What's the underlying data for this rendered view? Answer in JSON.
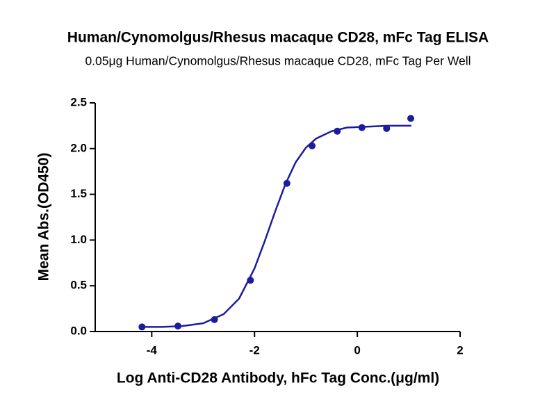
{
  "chart_data": {
    "type": "scatter",
    "title": "Human/Cynomolgus/Rhesus macaque CD28, mFc Tag ELISA",
    "subtitle": "0.05μg Human/Cynomolgus/Rhesus macaque CD28, mFc Tag Per Well",
    "x_label": "Log Anti-CD28 Antibody, hFc Tag Conc.(μg/ml)",
    "y_label": "Mean Abs.(OD450)",
    "xlim": [
      -5.1,
      2
    ],
    "ylim": [
      0,
      2.5
    ],
    "xticks": [
      -4,
      -2,
      0,
      2
    ],
    "yticks": [
      {
        "value": 0,
        "label": "0.0"
      },
      {
        "value": 0.5,
        "label": "0.5"
      },
      {
        "value": 1,
        "label": "1.0"
      },
      {
        "value": 1.5,
        "label": "1.5"
      },
      {
        "value": 2,
        "label": "2.0"
      },
      {
        "value": 2.5,
        "label": "2.5"
      }
    ],
    "series": [
      {
        "mode": "markers",
        "color": "#1c1c9e",
        "x": [
          -4.19,
          -3.49,
          -2.78,
          -2.08,
          -1.37,
          -0.88,
          -0.39,
          0.09,
          0.57,
          1.04
        ],
        "values": [
          0.05,
          0.06,
          0.13,
          0.56,
          1.62,
          2.03,
          2.19,
          2.23,
          2.22,
          2.33
        ]
      },
      {
        "mode": "line",
        "color": "#1c1c9e",
        "x": [
          -4.2,
          -3.8,
          -3.4,
          -3.0,
          -2.6,
          -2.3,
          -2.0,
          -1.8,
          -1.6,
          -1.4,
          -1.2,
          -1.0,
          -0.8,
          -0.5,
          -0.2,
          0.2,
          0.6,
          1.05
        ],
        "values": [
          0.05,
          0.05,
          0.06,
          0.09,
          0.19,
          0.36,
          0.69,
          0.99,
          1.31,
          1.61,
          1.85,
          2.01,
          2.11,
          2.19,
          2.23,
          2.24,
          2.25,
          2.25
        ]
      }
    ]
  }
}
